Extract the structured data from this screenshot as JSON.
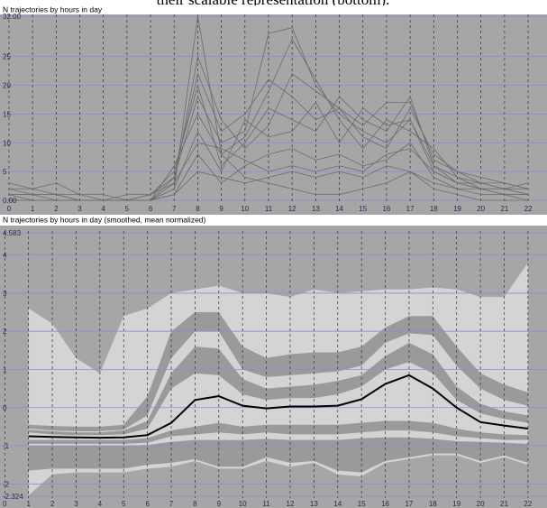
{
  "caption": "their scalable representation (bottom).",
  "chart_data": [
    {
      "type": "line",
      "title": "N trajectories by hours in day",
      "x": [
        0,
        1,
        2,
        3,
        4,
        5,
        6,
        7,
        8,
        9,
        10,
        11,
        12,
        13,
        14,
        15,
        16,
        17,
        18,
        19,
        20,
        21,
        22
      ],
      "xlim": [
        -0.38,
        22.8
      ],
      "xticks": [
        0,
        1,
        2,
        3,
        4,
        5,
        6,
        7,
        8,
        9,
        10,
        11,
        12,
        13,
        14,
        15,
        16,
        17,
        18,
        19,
        20,
        21,
        22
      ],
      "ylim": [
        0,
        32
      ],
      "yticks": [
        {
          "value": 0,
          "label": "0.00"
        },
        5,
        10,
        15,
        20,
        25,
        {
          "value": 32,
          "label": "32.00"
        }
      ],
      "grid": true,
      "series": [
        {
          "color": "#6c6c6c",
          "values": [
            0,
            0,
            0,
            0,
            0,
            0,
            0,
            2,
            32,
            8,
            4,
            3,
            2,
            1,
            1,
            2,
            3,
            5,
            2,
            1,
            0,
            0,
            0
          ]
        },
        {
          "color": "#6c6c6c",
          "values": [
            1,
            1,
            1,
            0,
            0,
            0,
            1,
            4,
            18,
            10,
            12,
            29,
            30,
            20,
            15,
            12,
            10,
            14,
            6,
            3,
            2,
            1,
            1
          ]
        },
        {
          "color": "#6c6c6c",
          "values": [
            2,
            1,
            1,
            0,
            0,
            0,
            0,
            3,
            25,
            14,
            9,
            13,
            22,
            19,
            16,
            11,
            9,
            16,
            8,
            5,
            3,
            3,
            2
          ]
        },
        {
          "color": "#6c6c6c",
          "values": [
            0,
            0,
            0,
            0,
            0,
            0,
            1,
            5,
            20,
            6,
            10,
            16,
            14,
            12,
            18,
            14,
            12,
            18,
            6,
            4,
            2,
            2,
            1
          ]
        },
        {
          "color": "#6c6c6c",
          "values": [
            3,
            2,
            3,
            1,
            0,
            0,
            0,
            6,
            15,
            8,
            11,
            19,
            28,
            21,
            14,
            9,
            14,
            12,
            9,
            4,
            3,
            2,
            3
          ]
        },
        {
          "color": "#6c6c6c",
          "values": [
            1,
            0,
            0,
            0,
            0,
            0,
            0,
            2,
            12,
            5,
            14,
            11,
            12,
            17,
            10,
            16,
            13,
            14,
            5,
            3,
            3,
            2,
            1
          ]
        },
        {
          "color": "#6c6c6c",
          "values": [
            0,
            0,
            0,
            0,
            0,
            0,
            0,
            1,
            8,
            3,
            6,
            8,
            9,
            7,
            8,
            6,
            7,
            10,
            4,
            2,
            1,
            1,
            0
          ]
        },
        {
          "color": "#6c6c6c",
          "values": [
            2,
            2,
            1,
            1,
            1,
            0,
            0,
            4,
            22,
            12,
            15,
            21,
            18,
            14,
            16,
            13,
            17,
            17,
            7,
            5,
            4,
            3,
            2
          ]
        },
        {
          "color": "#6c6c6c",
          "values": [
            0,
            0,
            0,
            0,
            0,
            0,
            0,
            1,
            5,
            4,
            3,
            4,
            5,
            4,
            5,
            4,
            6,
            5,
            3,
            2,
            2,
            1,
            1
          ]
        },
        {
          "color": "#6c6c6c",
          "values": [
            1,
            1,
            0,
            0,
            0,
            1,
            1,
            3,
            10,
            9,
            7,
            5,
            6,
            5,
            6,
            5,
            8,
            9,
            5,
            3,
            2,
            2,
            2
          ]
        }
      ]
    },
    {
      "type": "band",
      "title": "N trajectories by hours in day (smoothed, mean normalized)",
      "x": [
        1,
        2,
        3,
        4,
        5,
        6,
        7,
        8,
        9,
        10,
        11,
        12,
        13,
        14,
        15,
        16,
        17,
        18,
        19,
        20,
        21,
        22
      ],
      "xlim": [
        -0.2,
        22.8
      ],
      "xticks": [
        0,
        1,
        2,
        3,
        4,
        5,
        6,
        7,
        8,
        9,
        10,
        11,
        12,
        13,
        14,
        15,
        16,
        17,
        18,
        19,
        20,
        21,
        22
      ],
      "ylim": [
        -2.324,
        4.583
      ],
      "yticks": [
        -2.324,
        -2,
        -1,
        0,
        1,
        2,
        3,
        4,
        4.583
      ],
      "grid": true,
      "bands": [
        {
          "color": "#d4d4d4",
          "upper": [
            2.6,
            2.2,
            1.3,
            0.9,
            2.4,
            2.6,
            3.0,
            3.1,
            3.2,
            3.0,
            3.0,
            2.9,
            3.1,
            3.0,
            3.05,
            3.1,
            3.1,
            3.15,
            3.1,
            2.9,
            2.9,
            3.8
          ],
          "lower": [
            -2.3,
            -1.75,
            -1.7,
            -1.7,
            -1.7,
            -1.6,
            -1.55,
            -1.4,
            -1.6,
            -1.6,
            -1.4,
            -1.55,
            -1.45,
            -1.75,
            -1.8,
            -1.45,
            -1.35,
            -1.25,
            -1.25,
            -1.45,
            -1.3,
            -1.5
          ]
        },
        {
          "color": "#9a9a9a",
          "upper": [
            -0.45,
            -0.48,
            -0.5,
            -0.5,
            -0.45,
            0.3,
            2.0,
            2.5,
            2.5,
            1.6,
            1.3,
            1.4,
            1.45,
            1.45,
            1.6,
            2.1,
            2.4,
            2.4,
            1.6,
            0.9,
            0.6,
            0.4
          ],
          "lower": [
            -0.55,
            -0.6,
            -0.62,
            -0.62,
            -0.58,
            -0.2,
            1.3,
            2.0,
            2.0,
            1.0,
            0.8,
            0.85,
            0.9,
            0.95,
            1.1,
            1.7,
            1.95,
            1.9,
            1.1,
            0.5,
            0.2,
            0.05
          ]
        },
        {
          "color": "#9a9a9a",
          "upper": [
            -0.58,
            -0.62,
            -0.65,
            -0.65,
            -0.6,
            -0.35,
            0.9,
            1.6,
            1.55,
            0.75,
            0.5,
            0.55,
            0.6,
            0.7,
            0.85,
            1.35,
            1.7,
            1.4,
            0.55,
            0.1,
            -0.1,
            -0.2
          ],
          "lower": [
            -0.65,
            -0.7,
            -0.72,
            -0.72,
            -0.7,
            -0.55,
            0.5,
            0.9,
            0.85,
            0.35,
            0.2,
            0.25,
            0.25,
            0.35,
            0.55,
            1.0,
            1.2,
            0.9,
            0.2,
            -0.15,
            -0.3,
            -0.4
          ]
        },
        {
          "color": "#9a9a9a",
          "upper": [
            -0.85,
            -0.85,
            -0.85,
            -0.85,
            -0.85,
            -0.8,
            -0.6,
            -0.5,
            -0.4,
            -0.5,
            -0.45,
            -0.45,
            -0.45,
            -0.45,
            -0.4,
            -0.35,
            -0.35,
            -0.4,
            -0.55,
            -0.65,
            -0.7,
            -0.72
          ],
          "lower": [
            -0.95,
            -0.95,
            -0.95,
            -0.95,
            -0.95,
            -0.92,
            -0.75,
            -0.7,
            -0.65,
            -0.7,
            -0.65,
            -0.7,
            -0.7,
            -0.7,
            -0.65,
            -0.6,
            -0.6,
            -0.65,
            -0.75,
            -0.8,
            -0.85,
            -0.85
          ]
        },
        {
          "color": "#9a9a9a",
          "upper": [
            -1.0,
            -1.0,
            -1.0,
            -1.0,
            -1.0,
            -0.98,
            -0.9,
            -0.85,
            -0.85,
            -0.85,
            -0.82,
            -0.85,
            -0.85,
            -0.85,
            -0.8,
            -0.78,
            -0.78,
            -0.82,
            -0.88,
            -0.9,
            -0.92,
            -0.95
          ],
          "lower": [
            -1.65,
            -1.6,
            -1.6,
            -1.6,
            -1.6,
            -1.5,
            -1.45,
            -1.35,
            -1.55,
            -1.55,
            -1.3,
            -1.45,
            -1.4,
            -1.65,
            -1.7,
            -1.4,
            -1.3,
            -1.2,
            -1.2,
            -1.4,
            -1.25,
            -1.45
          ]
        }
      ],
      "series": [
        {
          "color": "#000000",
          "values": [
            -0.75,
            -0.77,
            -0.78,
            -0.79,
            -0.78,
            -0.72,
            -0.4,
            0.2,
            0.3,
            0.05,
            -0.02,
            0.03,
            0.03,
            0.05,
            0.22,
            0.62,
            0.85,
            0.5,
            0.0,
            -0.38,
            -0.47,
            -0.55
          ]
        }
      ]
    }
  ]
}
